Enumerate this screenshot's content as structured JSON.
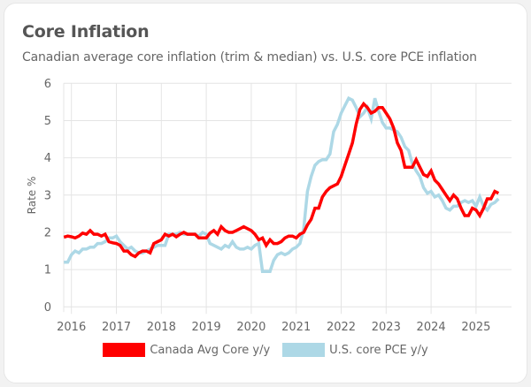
{
  "card": {
    "title": "Core Inflation",
    "subtitle": "Canadian average core inflation (trim & median) vs. U.S. core PCE inflation"
  },
  "chart_data": {
    "type": "line",
    "title": "Core Inflation",
    "subtitle": "Canadian average core inflation (trim & median) vs. U.S. core PCE inflation",
    "xlabel": "",
    "ylabel": "Rate %",
    "ylim": [
      0,
      6
    ],
    "yticks": [
      0,
      1,
      2,
      3,
      4,
      5,
      6
    ],
    "xticks": [
      "2016",
      "2017",
      "2018",
      "2019",
      "2020",
      "2021",
      "2022",
      "2023",
      "2024",
      "2025"
    ],
    "x_start": "2015-11",
    "x_end": "2025-07",
    "frequency": "monthly",
    "grid": true,
    "legend_position": "bottom",
    "series": [
      {
        "name": "Canada Avg Core y/y",
        "color": "#ff0000",
        "values": [
          1.87,
          1.9,
          1.88,
          1.85,
          1.9,
          1.98,
          1.95,
          2.05,
          1.95,
          1.95,
          1.9,
          1.95,
          1.75,
          1.72,
          1.7,
          1.65,
          1.5,
          1.5,
          1.4,
          1.35,
          1.45,
          1.5,
          1.5,
          1.45,
          1.7,
          1.75,
          1.8,
          1.95,
          1.9,
          1.95,
          1.88,
          1.95,
          2.0,
          1.95,
          1.95,
          1.95,
          1.85,
          1.85,
          1.85,
          1.98,
          2.05,
          1.95,
          2.15,
          2.05,
          2.0,
          2.0,
          2.05,
          2.1,
          2.15,
          2.1,
          2.05,
          1.95,
          1.8,
          1.85,
          1.65,
          1.8,
          1.7,
          1.7,
          1.75,
          1.85,
          1.9,
          1.9,
          1.85,
          1.95,
          2.0,
          2.2,
          2.35,
          2.65,
          2.65,
          2.95,
          3.1,
          3.2,
          3.25,
          3.3,
          3.5,
          3.8,
          4.1,
          4.4,
          4.9,
          5.3,
          5.45,
          5.35,
          5.2,
          5.25,
          5.35,
          5.35,
          5.2,
          5.05,
          4.8,
          4.4,
          4.2,
          3.75,
          3.75,
          3.75,
          3.95,
          3.75,
          3.55,
          3.5,
          3.65,
          3.4,
          3.3,
          3.15,
          3.0,
          2.85,
          3.0,
          2.9,
          2.65,
          2.45,
          2.45,
          2.65,
          2.6,
          2.45,
          2.65,
          2.9,
          2.9,
          3.1,
          3.05
        ]
      },
      {
        "name": "U.S. core PCE y/y",
        "color": "#add8e6",
        "values": [
          1.2,
          1.2,
          1.4,
          1.5,
          1.45,
          1.55,
          1.55,
          1.6,
          1.6,
          1.7,
          1.7,
          1.75,
          1.85,
          1.85,
          1.9,
          1.75,
          1.65,
          1.55,
          1.6,
          1.5,
          1.45,
          1.45,
          1.5,
          1.55,
          1.6,
          1.65,
          1.65,
          1.65,
          1.95,
          1.95,
          1.95,
          2.0,
          1.95,
          1.95,
          1.95,
          1.95,
          1.9,
          2.0,
          1.95,
          1.7,
          1.65,
          1.6,
          1.55,
          1.65,
          1.6,
          1.75,
          1.6,
          1.55,
          1.55,
          1.6,
          1.55,
          1.65,
          1.7,
          0.95,
          0.95,
          0.95,
          1.25,
          1.4,
          1.45,
          1.4,
          1.45,
          1.55,
          1.6,
          1.7,
          2.1,
          3.1,
          3.5,
          3.8,
          3.9,
          3.95,
          3.95,
          4.1,
          4.7,
          4.9,
          5.2,
          5.4,
          5.6,
          5.55,
          5.35,
          5.1,
          5.2,
          5.35,
          5.05,
          5.6,
          5.25,
          4.95,
          4.8,
          4.8,
          4.75,
          4.7,
          4.55,
          4.3,
          4.2,
          3.85,
          3.65,
          3.5,
          3.2,
          3.05,
          3.1,
          2.95,
          3.0,
          2.85,
          2.65,
          2.6,
          2.7,
          2.7,
          2.8,
          2.85,
          2.8,
          2.85,
          2.7,
          2.95,
          2.7,
          2.6,
          2.75,
          2.8,
          2.9
        ]
      }
    ]
  }
}
